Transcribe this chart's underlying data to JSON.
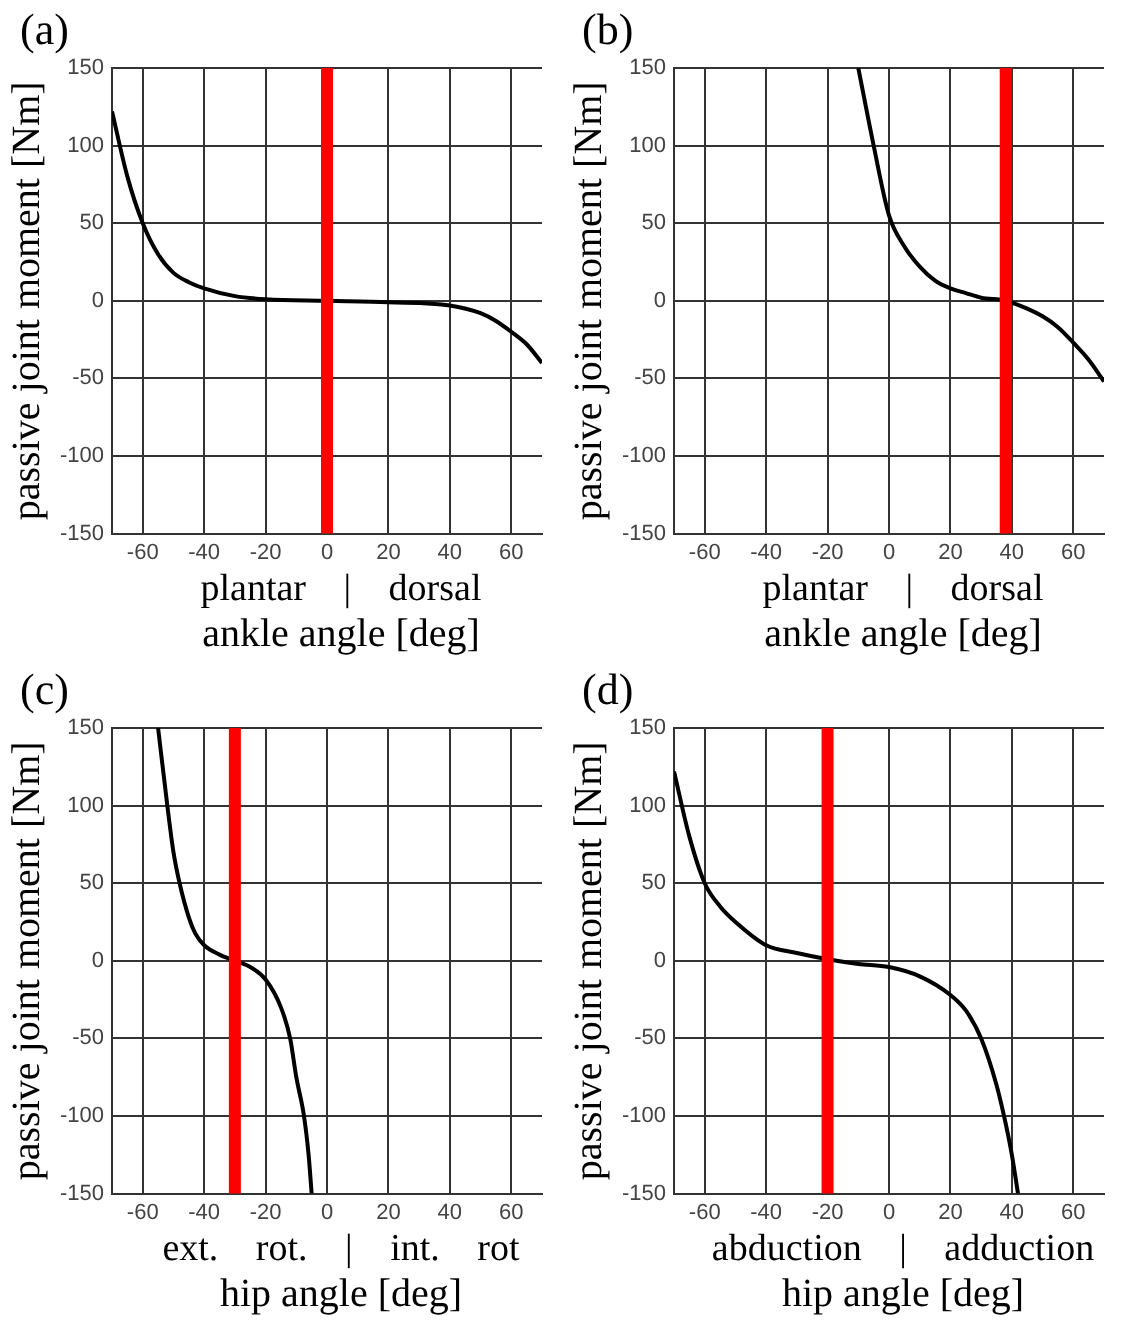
{
  "chart_data": [
    {
      "type": "line",
      "title": "(a)",
      "xlabel": "ankle angle [deg]",
      "ylabel": "passive joint moment [Nm]",
      "annotations": [
        "plantar | dorsal"
      ],
      "color": "#000000",
      "x": [
        -70,
        -65,
        -60,
        -55,
        -50,
        -45,
        -40,
        -30,
        -20,
        0,
        20,
        40,
        50,
        55,
        60,
        65,
        70
      ],
      "values": [
        122,
        80,
        50,
        30,
        18,
        12,
        8,
        3,
        1,
        0,
        -1,
        -3,
        -8,
        -13,
        -20,
        -28,
        -40
      ],
      "xlim": [
        -70,
        70
      ],
      "xticks": [
        -60,
        -40,
        -20,
        0,
        20,
        40,
        60
      ],
      "ylim": [
        -150,
        150
      ],
      "yticks": [
        -150,
        -100,
        -50,
        0,
        50,
        100,
        150
      ],
      "grid": true,
      "ref_lines": [
        {
          "axis": "x",
          "value": 0,
          "color": "#ff0000"
        }
      ]
    },
    {
      "type": "line",
      "title": "(b)",
      "xlabel": "ankle angle [deg]",
      "ylabel": "passive joint moment [Nm]",
      "annotations": [
        "plantar | dorsal"
      ],
      "color": "#000000",
      "x": [
        -10,
        -5,
        0,
        5,
        10,
        15,
        20,
        25,
        30,
        38,
        45,
        50,
        55,
        60,
        65,
        70
      ],
      "values": [
        150,
        100,
        55,
        35,
        22,
        13,
        8,
        5,
        2,
        0,
        -5,
        -10,
        -17,
        -27,
        -38,
        -52
      ],
      "xlim": [
        -70,
        70
      ],
      "xticks": [
        -60,
        -40,
        -20,
        0,
        20,
        40,
        60
      ],
      "ylim": [
        -150,
        150
      ],
      "yticks": [
        -150,
        -100,
        -50,
        0,
        50,
        100,
        150
      ],
      "grid": true,
      "ref_lines": [
        {
          "axis": "x",
          "value": 38,
          "color": "#ff0000"
        }
      ]
    },
    {
      "type": "line",
      "title": "(c)",
      "xlabel": "hip angle [deg]",
      "ylabel": "passive joint moment [Nm]",
      "annotations": [
        "ext. rot. | int. rot"
      ],
      "color": "#000000",
      "x": [
        -55,
        -52,
        -50,
        -48,
        -45,
        -43,
        -40,
        -35,
        -30,
        -25,
        -20,
        -15,
        -12,
        -10,
        -7.5,
        -6,
        -5
      ],
      "values": [
        150,
        100,
        70,
        50,
        28,
        18,
        10,
        4,
        0,
        -4,
        -12,
        -30,
        -50,
        -75,
        -100,
        -125,
        -150
      ],
      "xlim": [
        -70,
        70
      ],
      "xticks": [
        -60,
        -40,
        -20,
        0,
        20,
        40,
        60
      ],
      "ylim": [
        -150,
        150
      ],
      "yticks": [
        -150,
        -100,
        -50,
        0,
        50,
        100,
        150
      ],
      "grid": true,
      "ref_lines": [
        {
          "axis": "x",
          "value": -30,
          "color": "#ff0000"
        }
      ]
    },
    {
      "type": "line",
      "title": "(d)",
      "xlabel": "hip angle [deg]",
      "ylabel": "passive joint moment [Nm]",
      "annotations": [
        "abduction | adduction"
      ],
      "color": "#000000",
      "x": [
        -70,
        -65,
        -60,
        -55,
        -50,
        -40,
        -30,
        -20,
        -10,
        0,
        10,
        20,
        25,
        30,
        35,
        38,
        40,
        42
      ],
      "values": [
        122,
        80,
        50,
        35,
        25,
        10,
        5,
        1,
        -2,
        -4,
        -10,
        -22,
        -32,
        -50,
        -80,
        -105,
        -125,
        -150
      ],
      "xlim": [
        -70,
        70
      ],
      "xticks": [
        -60,
        -40,
        -20,
        0,
        20,
        40,
        60
      ],
      "ylim": [
        -150,
        150
      ],
      "yticks": [
        -150,
        -100,
        -50,
        0,
        50,
        100,
        150
      ],
      "grid": true,
      "ref_lines": [
        {
          "axis": "x",
          "value": -20,
          "color": "#ff0000"
        }
      ]
    }
  ]
}
